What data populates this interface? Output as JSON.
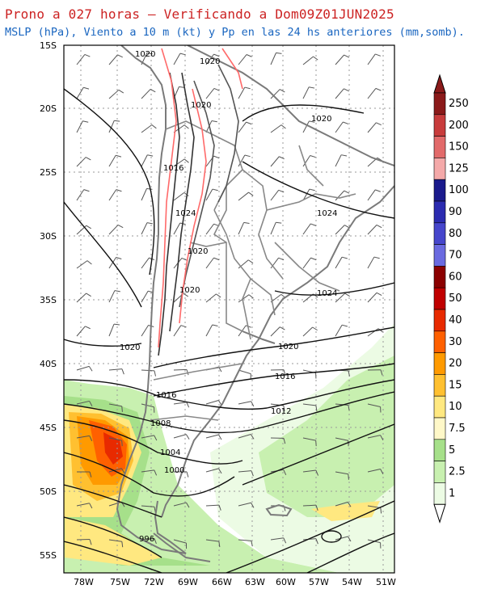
{
  "header": {
    "title": "Prono a 027 horas – Verificando a Dom09Z01JUN2025",
    "subtitle": "MSLP (hPa), Viento a 10 m (kt) y Pp en las 24 hs anteriores (mm,somb)."
  },
  "map": {
    "lat_labels": [
      "15S",
      "20S",
      "25S",
      "30S",
      "35S",
      "40S",
      "45S",
      "50S",
      "55S"
    ],
    "lon_labels": [
      "78W",
      "75W",
      "72W",
      "69W",
      "66W",
      "63W",
      "60W",
      "57W",
      "54W",
      "51W"
    ],
    "isobar_labels": [
      "1020",
      "1020",
      "1020",
      "1020",
      "1016",
      "1024",
      "1024",
      "1020",
      "1020",
      "1020",
      "1020",
      "1016",
      "1016",
      "1012",
      "1008",
      "1004",
      "1000",
      "996",
      "1024"
    ]
  },
  "colorbar": {
    "labels": [
      "250",
      "200",
      "150",
      "125",
      "100",
      "90",
      "80",
      "70",
      "60",
      "50",
      "40",
      "30",
      "20",
      "15",
      "10",
      "7.5",
      "5",
      "2.5",
      "1"
    ],
    "colors": [
      "#8b1a1a",
      "#c83c3c",
      "#e26a6a",
      "#f4a9a9",
      "#1a1a8c",
      "#2b2bb0",
      "#4646cc",
      "#6a6ae0",
      "#8b0000",
      "#c00000",
      "#e82a00",
      "#ff6000",
      "#ff9a00",
      "#ffc030",
      "#ffe880",
      "#fff8c8",
      "#a6e08a",
      "#c8f0b0",
      "#ecfbe4"
    ]
  }
}
